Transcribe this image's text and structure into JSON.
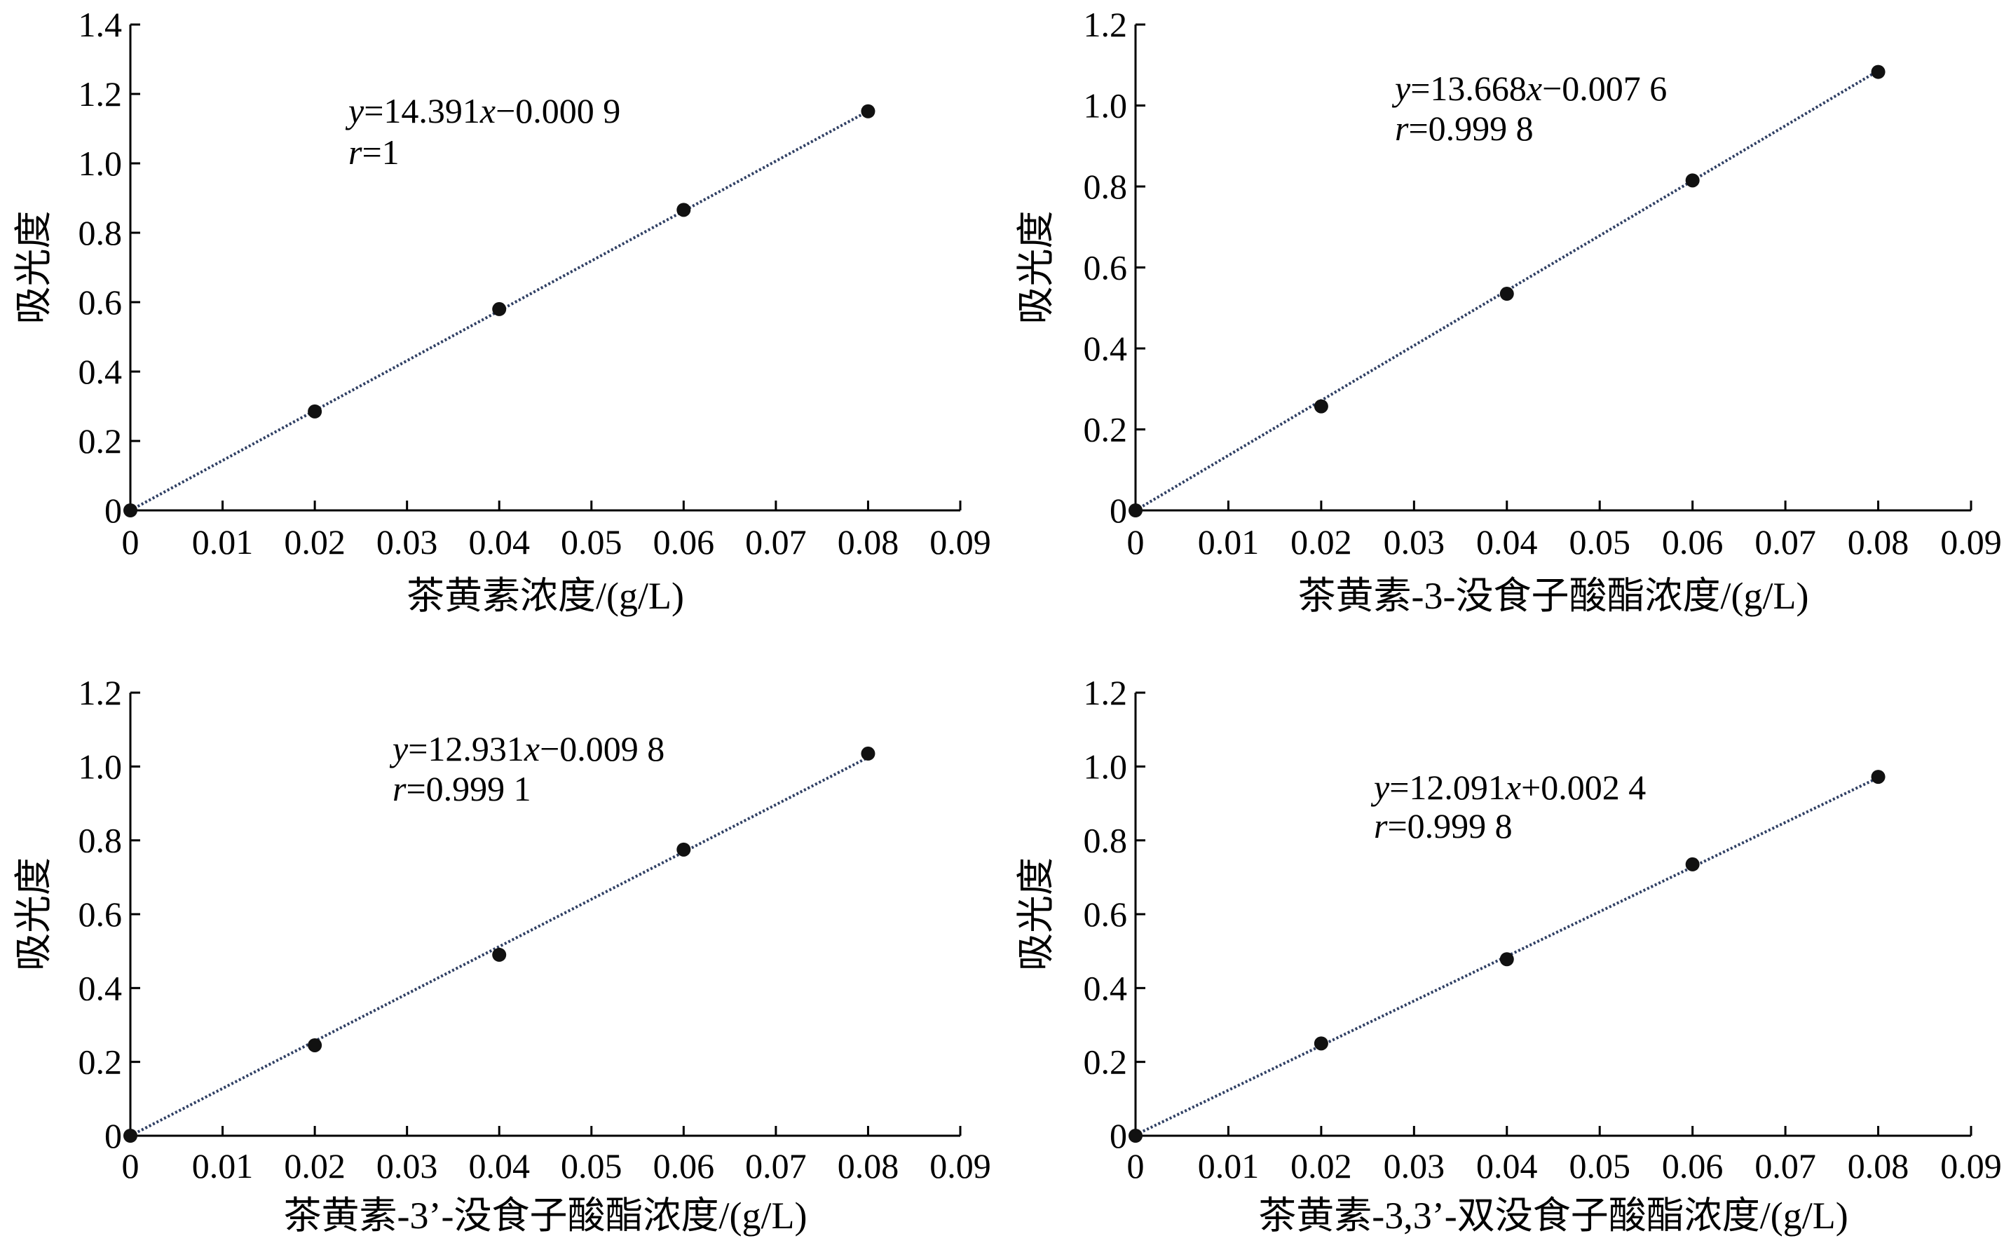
{
  "chart_data": [
    {
      "type": "scatter",
      "x": [
        0,
        0.02,
        0.04,
        0.06,
        0.08
      ],
      "y": [
        0,
        0.285,
        0.58,
        0.866,
        1.15
      ],
      "xlabel": "茶黄素浓度/(g/L)",
      "ylabel": "吸光度",
      "xlim": [
        0,
        0.09
      ],
      "ylim": [
        0,
        1.4
      ],
      "xticks": [
        "0",
        "0.01",
        "0.02",
        "0.03",
        "0.04",
        "0.05",
        "0.06",
        "0.07",
        "0.08",
        "0.09"
      ],
      "yticks": [
        "0",
        "0.2",
        "0.4",
        "0.6",
        "0.8",
        "1.0",
        "1.2",
        "1.4"
      ],
      "equation": {
        "y_var": "y",
        "y_rest": "=14.391",
        "x_var": "x",
        "x_rest": "−0.000 9"
      },
      "r_value": {
        "r_var": "r",
        "r_rest": "=1"
      },
      "fit": {
        "slope": 14.391,
        "intercept": -0.0009
      },
      "grid": false
    },
    {
      "type": "scatter",
      "x": [
        0,
        0.02,
        0.04,
        0.06,
        0.08
      ],
      "y": [
        0,
        0.257,
        0.535,
        0.815,
        1.083
      ],
      "xlabel": "茶黄素-3-没食子酸酯浓度/(g/L)",
      "ylabel": "吸光度",
      "xlim": [
        0,
        0.09
      ],
      "ylim": [
        0,
        1.2
      ],
      "xticks": [
        "0",
        "0.01",
        "0.02",
        "0.03",
        "0.04",
        "0.05",
        "0.06",
        "0.07",
        "0.08",
        "0.09"
      ],
      "yticks": [
        "0",
        "0.2",
        "0.4",
        "0.6",
        "0.8",
        "1.0",
        "1.2"
      ],
      "equation": {
        "y_var": "y",
        "y_rest": "=13.668",
        "x_var": "x",
        "x_rest": "−0.007 6"
      },
      "r_value": {
        "r_var": "r",
        "r_rest": "=0.999 8"
      },
      "fit": {
        "slope": 13.668,
        "intercept": -0.0076
      },
      "grid": false
    },
    {
      "type": "scatter",
      "x": [
        0,
        0.02,
        0.04,
        0.06,
        0.08
      ],
      "y": [
        0,
        0.245,
        0.49,
        0.775,
        1.035
      ],
      "xlabel": "茶黄素-3’-没食子酸酯浓度/(g/L)",
      "ylabel": "吸光度",
      "xlim": [
        0,
        0.09
      ],
      "ylim": [
        0,
        1.2
      ],
      "xticks": [
        "0",
        "0.01",
        "0.02",
        "0.03",
        "0.04",
        "0.05",
        "0.06",
        "0.07",
        "0.08",
        "0.09"
      ],
      "yticks": [
        "0",
        "0.2",
        "0.4",
        "0.6",
        "0.8",
        "1.0",
        "1.2"
      ],
      "equation": {
        "y_var": "y",
        "y_rest": "=12.931",
        "x_var": "x",
        "x_rest": "−0.009 8"
      },
      "r_value": {
        "r_var": "r",
        "r_rest": "=0.999 1"
      },
      "fit": {
        "slope": 12.931,
        "intercept": -0.0098
      },
      "grid": false
    },
    {
      "type": "scatter",
      "x": [
        0,
        0.02,
        0.04,
        0.06,
        0.08
      ],
      "y": [
        0,
        0.25,
        0.478,
        0.735,
        0.972
      ],
      "xlabel": "茶黄素-3,3’-双没食子酸酯浓度/(g/L)",
      "ylabel": "吸光度",
      "xlim": [
        0,
        0.09
      ],
      "ylim": [
        0,
        1.2
      ],
      "xticks": [
        "0",
        "0.01",
        "0.02",
        "0.03",
        "0.04",
        "0.05",
        "0.06",
        "0.07",
        "0.08",
        "0.09"
      ],
      "yticks": [
        "0",
        "0.2",
        "0.4",
        "0.6",
        "0.8",
        "1.0",
        "1.2"
      ],
      "equation": {
        "y_var": "y",
        "y_rest": "=12.091",
        "x_var": "x",
        "x_rest": "+0.002 4"
      },
      "r_value": {
        "r_var": "r",
        "r_rest": "=0.999 8"
      },
      "fit": {
        "slope": 12.091,
        "intercept": 0.0024
      },
      "grid": false
    }
  ]
}
